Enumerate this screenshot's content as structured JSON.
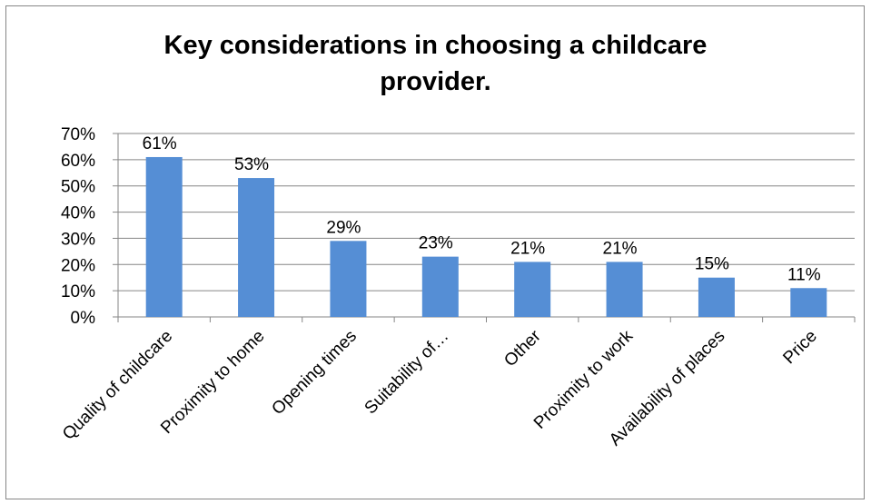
{
  "chart_data": {
    "type": "bar",
    "title": "Key considerations in choosing a  childcare\nprovider.",
    "categories": [
      "Quality of childcare",
      "Proximity to home",
      "Opening times",
      "Suitability of…",
      "Other",
      "Proximity to work",
      "Availability of places",
      "Price"
    ],
    "values": [
      61,
      53,
      29,
      23,
      21,
      21,
      15,
      11
    ],
    "data_labels": [
      "61%",
      "53%",
      "29%",
      "23%",
      "21%",
      "21%",
      "15%",
      "11%"
    ],
    "ylim": [
      0,
      70
    ],
    "yticks": [
      "0%",
      "10%",
      "20%",
      "30%",
      "40%",
      "50%",
      "60%",
      "70%"
    ],
    "grid": true,
    "legend": "none",
    "bar_color": "#558ED5"
  }
}
